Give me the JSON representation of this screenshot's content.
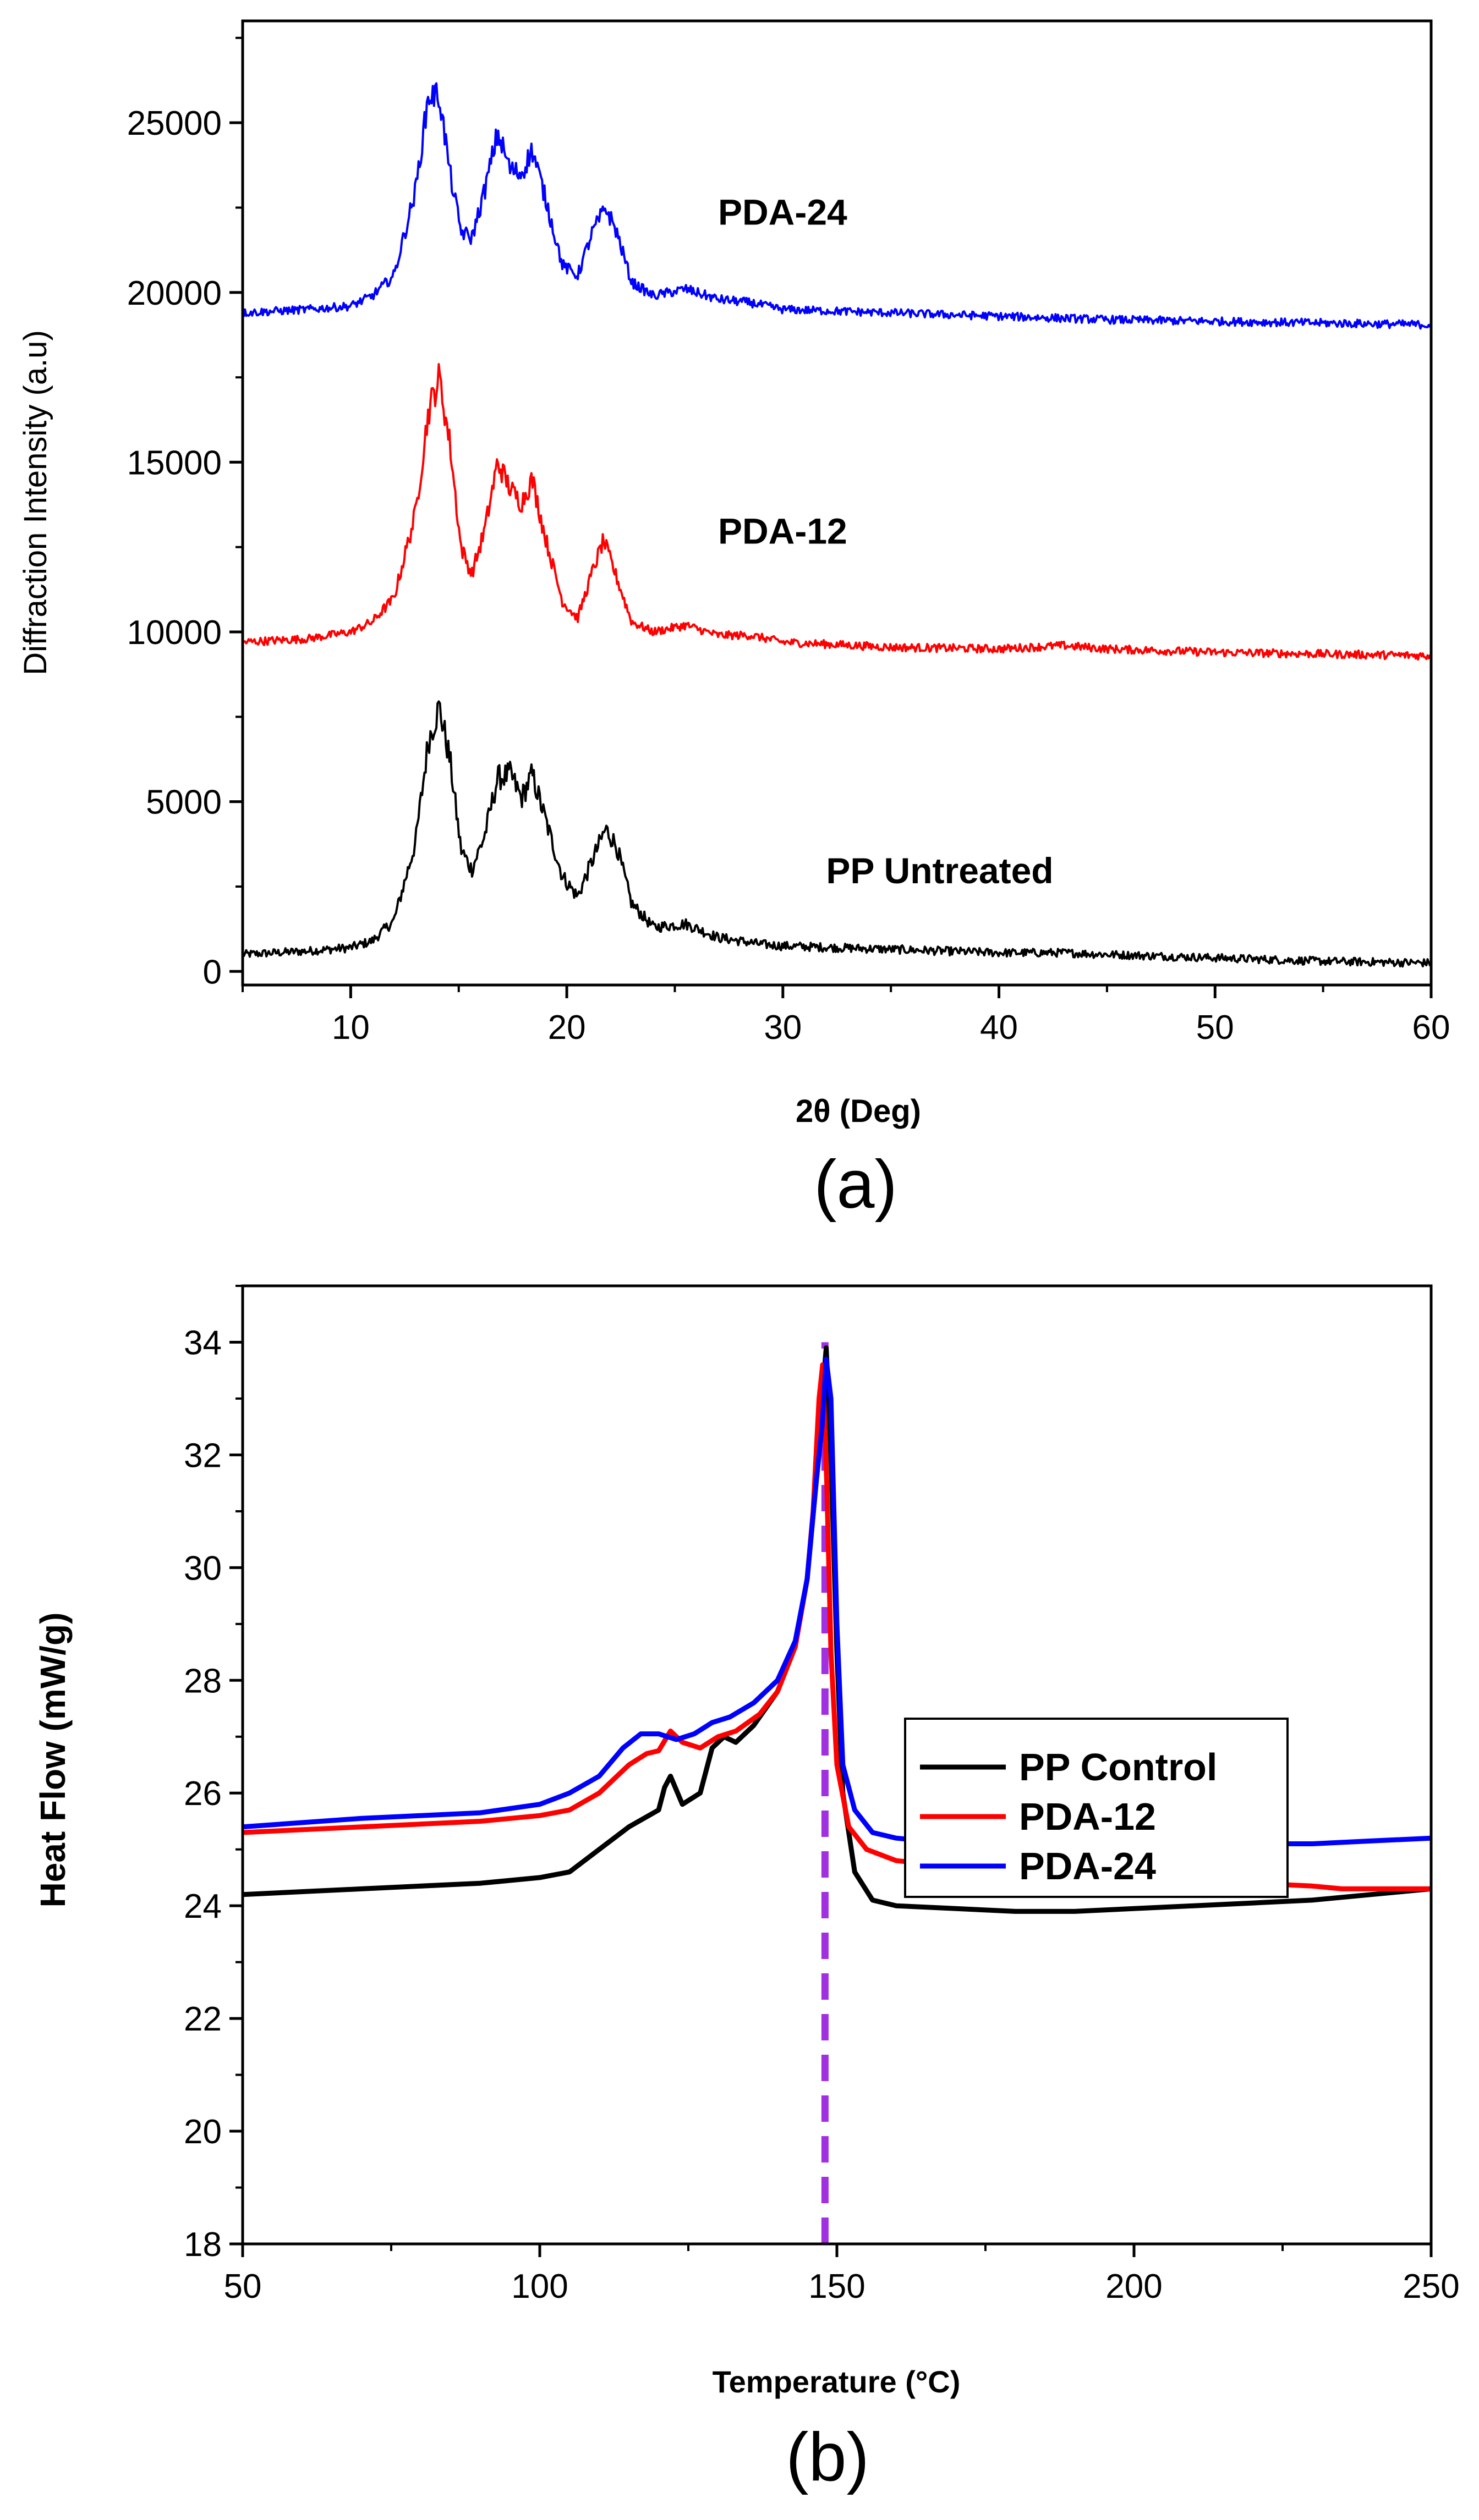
{
  "chart_data": [
    {
      "type": "line",
      "panel_label": "(a)",
      "xlabel": "2θ (Deg)",
      "ylabel": "Diffraction Intensity (a.u)",
      "xlim": [
        5,
        60
      ],
      "ylim": [
        -400,
        28000
      ],
      "xticks": [
        10,
        20,
        30,
        40,
        50,
        60
      ],
      "yticks": [
        0,
        5000,
        10000,
        15000,
        20000,
        25000
      ],
      "x_tick_labels": [
        "10",
        "20",
        "30",
        "40",
        "50",
        "60"
      ],
      "y_tick_labels": [
        "0",
        "5000",
        "10000",
        "15000",
        "20000",
        "25000"
      ],
      "series": [
        {
          "name": "PP Untreated",
          "color": "#000000",
          "label_at": [
            32,
            2600
          ],
          "points": [
            [
              5,
              500
            ],
            [
              8,
              600
            ],
            [
              10,
              700
            ],
            [
              11,
              900
            ],
            [
              12,
              1500
            ],
            [
              13,
              3800
            ],
            [
              13.6,
              6800
            ],
            [
              14.1,
              7800
            ],
            [
              14.6,
              6200
            ],
            [
              15.1,
              3600
            ],
            [
              15.6,
              3000
            ],
            [
              16.2,
              4000
            ],
            [
              16.8,
              5700
            ],
            [
              17.4,
              5800
            ],
            [
              17.9,
              5100
            ],
            [
              18.4,
              5800
            ],
            [
              19,
              4500
            ],
            [
              19.8,
              2800
            ],
            [
              20.5,
              2200
            ],
            [
              21.2,
              3300
            ],
            [
              21.8,
              4200
            ],
            [
              22.3,
              3700
            ],
            [
              23,
              2000
            ],
            [
              24,
              1300
            ],
            [
              25.5,
              1400
            ],
            [
              27,
              1000
            ],
            [
              29,
              800
            ],
            [
              30,
              750
            ],
            [
              35,
              650
            ],
            [
              40,
              550
            ],
            [
              43,
              550
            ],
            [
              45,
              500
            ],
            [
              50,
              400
            ],
            [
              55,
              300
            ],
            [
              60,
              250
            ]
          ]
        },
        {
          "name": "PDA-12",
          "color": "#ff0000",
          "label_at": [
            27,
            12600
          ],
          "points": [
            [
              5,
              9700
            ],
            [
              8,
              9800
            ],
            [
              10,
              10000
            ],
            [
              11,
              10300
            ],
            [
              12,
              11000
            ],
            [
              13,
              13500
            ],
            [
              13.6,
              16500
            ],
            [
              14.1,
              17500
            ],
            [
              14.6,
              15500
            ],
            [
              15.1,
              12500
            ],
            [
              15.6,
              11700
            ],
            [
              16.2,
              13000
            ],
            [
              16.8,
              15000
            ],
            [
              17.4,
              14200
            ],
            [
              17.9,
              13800
            ],
            [
              18.4,
              14500
            ],
            [
              19,
              12800
            ],
            [
              19.8,
              10900
            ],
            [
              20.5,
              10400
            ],
            [
              21.2,
              11800
            ],
            [
              21.7,
              12700
            ],
            [
              22.2,
              11800
            ],
            [
              23,
              10300
            ],
            [
              24,
              10000
            ],
            [
              25.5,
              10200
            ],
            [
              27,
              9900
            ],
            [
              28.5,
              9900
            ],
            [
              30,
              9700
            ],
            [
              35,
              9550
            ],
            [
              40,
              9500
            ],
            [
              43,
              9600
            ],
            [
              45,
              9500
            ],
            [
              50,
              9400
            ],
            [
              55,
              9350
            ],
            [
              60,
              9300
            ]
          ]
        },
        {
          "name": "PDA-24",
          "color": "#0000ff",
          "label_at": [
            27,
            22000
          ],
          "points": [
            [
              5,
              19400
            ],
            [
              8,
              19500
            ],
            [
              10,
              19600
            ],
            [
              11,
              19900
            ],
            [
              12,
              20500
            ],
            [
              13,
              23000
            ],
            [
              13.6,
              25800
            ],
            [
              14.1,
              25800
            ],
            [
              14.6,
              23500
            ],
            [
              15.1,
              21800
            ],
            [
              15.6,
              21600
            ],
            [
              16.2,
              23000
            ],
            [
              16.8,
              24700
            ],
            [
              17.4,
              23600
            ],
            [
              17.9,
              23500
            ],
            [
              18.4,
              24200
            ],
            [
              19,
              22800
            ],
            [
              19.8,
              20800
            ],
            [
              20.5,
              20500
            ],
            [
              21.2,
              21800
            ],
            [
              21.8,
              22500
            ],
            [
              22.3,
              21800
            ],
            [
              23,
              20300
            ],
            [
              24,
              19900
            ],
            [
              25.5,
              20100
            ],
            [
              27,
              19800
            ],
            [
              28.5,
              19700
            ],
            [
              30,
              19500
            ],
            [
              35,
              19400
            ],
            [
              40,
              19300
            ],
            [
              45,
              19200
            ],
            [
              50,
              19150
            ],
            [
              55,
              19100
            ],
            [
              60,
              19050
            ]
          ]
        }
      ]
    },
    {
      "type": "line",
      "panel_label": "(b)",
      "xlabel": "Temperature (°C)",
      "ylabel": "Heat Flow (mW/g)",
      "xlim": [
        50,
        250
      ],
      "ylim": [
        18,
        35
      ],
      "xticks": [
        50,
        100,
        150,
        200,
        250
      ],
      "yticks": [
        18,
        20,
        22,
        24,
        26,
        28,
        30,
        32,
        34
      ],
      "x_tick_labels": [
        "50",
        "100",
        "150",
        "200",
        "250"
      ],
      "y_tick_labels": [
        "18",
        "20",
        "22",
        "24",
        "26",
        "28",
        "30",
        "32",
        "34"
      ],
      "reference_line": {
        "x": 148,
        "y_from": 18,
        "y_to": 34,
        "color": "#a030e0",
        "style": "dashed"
      },
      "legend_position": "center-right",
      "series": [
        {
          "name": "PP Control",
          "color": "#000000",
          "points": [
            [
              50,
              24.2
            ],
            [
              70,
              24.3
            ],
            [
              90,
              24.4
            ],
            [
              100,
              24.5
            ],
            [
              105,
              24.6
            ],
            [
              110,
              25.0
            ],
            [
              115,
              25.4
            ],
            [
              120,
              25.7
            ],
            [
              121,
              26.1
            ],
            [
              122,
              26.3
            ],
            [
              124,
              25.8
            ],
            [
              127,
              26.0
            ],
            [
              129,
              26.8
            ],
            [
              131,
              27.0
            ],
            [
              133,
              26.9
            ],
            [
              136,
              27.2
            ],
            [
              140,
              27.8
            ],
            [
              143,
              28.6
            ],
            [
              145,
              29.8
            ],
            [
              146.5,
              31.5
            ],
            [
              147.5,
              33.0
            ],
            [
              148.2,
              33.9
            ],
            [
              149,
              32.0
            ],
            [
              150,
              28.5
            ],
            [
              151,
              26.0
            ],
            [
              153,
              24.6
            ],
            [
              156,
              24.1
            ],
            [
              160,
              24.0
            ],
            [
              170,
              23.95
            ],
            [
              180,
              23.9
            ],
            [
              190,
              23.9
            ],
            [
              200,
              23.95
            ],
            [
              210,
              24.0
            ],
            [
              220,
              24.05
            ],
            [
              230,
              24.1
            ],
            [
              240,
              24.2
            ],
            [
              250,
              24.3
            ]
          ]
        },
        {
          "name": "PDA-12",
          "color": "#ff0000",
          "points": [
            [
              50,
              25.3
            ],
            [
              70,
              25.4
            ],
            [
              90,
              25.5
            ],
            [
              100,
              25.6
            ],
            [
              105,
              25.7
            ],
            [
              110,
              26.0
            ],
            [
              115,
              26.5
            ],
            [
              118,
              26.7
            ],
            [
              120,
              26.75
            ],
            [
              122,
              27.1
            ],
            [
              124,
              26.9
            ],
            [
              127,
              26.8
            ],
            [
              130,
              27.0
            ],
            [
              133,
              27.1
            ],
            [
              137,
              27.4
            ],
            [
              140,
              27.8
            ],
            [
              143,
              28.6
            ],
            [
              145,
              29.8
            ],
            [
              146,
              31.0
            ],
            [
              147,
              33.0
            ],
            [
              147.6,
              33.6
            ],
            [
              148.3,
              31.5
            ],
            [
              149,
              28.5
            ],
            [
              150,
              26.5
            ],
            [
              152,
              25.4
            ],
            [
              155,
              25.0
            ],
            [
              160,
              24.8
            ],
            [
              170,
              24.7
            ],
            [
              180,
              24.6
            ],
            [
              190,
              24.55
            ],
            [
              200,
              24.5
            ],
            [
              210,
              24.45
            ],
            [
              220,
              24.4
            ],
            [
              230,
              24.35
            ],
            [
              235,
              24.3
            ],
            [
              240,
              24.3
            ],
            [
              250,
              24.3
            ]
          ]
        },
        {
          "name": "PDA-24",
          "color": "#0000ff",
          "points": [
            [
              50,
              25.4
            ],
            [
              70,
              25.55
            ],
            [
              90,
              25.65
            ],
            [
              100,
              25.8
            ],
            [
              105,
              26.0
            ],
            [
              110,
              26.3
            ],
            [
              114,
              26.8
            ],
            [
              117,
              27.05
            ],
            [
              120,
              27.05
            ],
            [
              123,
              26.95
            ],
            [
              126,
              27.05
            ],
            [
              129,
              27.25
            ],
            [
              132,
              27.35
            ],
            [
              136,
              27.6
            ],
            [
              140,
              28.0
            ],
            [
              143,
              28.7
            ],
            [
              145,
              29.8
            ],
            [
              146.5,
              31.5
            ],
            [
              147.5,
              32.5
            ],
            [
              148.2,
              33.7
            ],
            [
              149,
              33.0
            ],
            [
              150,
              29.0
            ],
            [
              151,
              26.5
            ],
            [
              153,
              25.7
            ],
            [
              156,
              25.3
            ],
            [
              160,
              25.2
            ],
            [
              170,
              25.1
            ],
            [
              180,
              25.05
            ],
            [
              190,
              25.05
            ],
            [
              200,
              25.05
            ],
            [
              210,
              25.05
            ],
            [
              220,
              25.1
            ],
            [
              230,
              25.1
            ],
            [
              240,
              25.15
            ],
            [
              250,
              25.2
            ]
          ]
        }
      ]
    }
  ]
}
